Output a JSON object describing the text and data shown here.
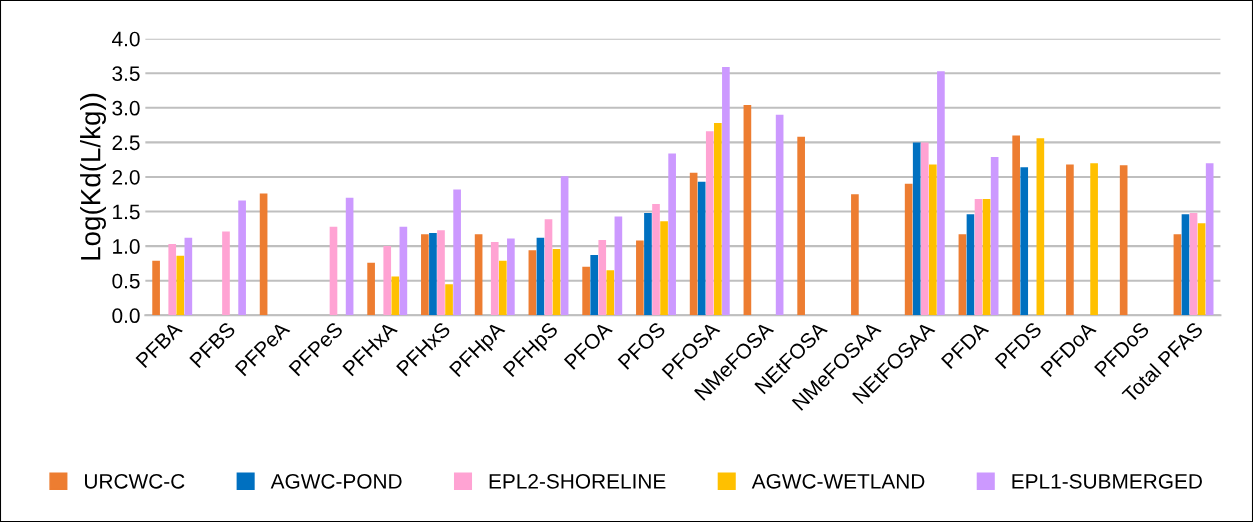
{
  "chart_data": {
    "type": "bar",
    "ylabel": "Log(Kd(L/kg))",
    "categories": [
      "PFBA",
      "PFBS",
      "PFPeA",
      "PFPeS",
      "PFHxA",
      "PFHxS",
      "PFHpA",
      "PFHpS",
      "PFOA",
      "PFOS",
      "PFOSA",
      "NMeFOSA",
      "NEtFOSA",
      "NMeFOSAA",
      "NEtFOSAA",
      "PFDA",
      "PFDS",
      "PFDoA",
      "PFDoS",
      "Total PFAS"
    ],
    "series": [
      {
        "name": "URCWC-C",
        "color": "#ed7d31",
        "values": [
          0.79,
          null,
          1.76,
          null,
          0.76,
          1.17,
          1.17,
          0.94,
          0.7,
          1.08,
          2.06,
          3.04,
          2.58,
          1.75,
          1.9,
          1.17,
          2.6,
          2.18,
          2.17,
          1.17
        ]
      },
      {
        "name": "AGWC-POND",
        "color": "#0070c0",
        "values": [
          null,
          null,
          null,
          null,
          null,
          1.19,
          null,
          1.12,
          0.87,
          1.48,
          1.93,
          null,
          null,
          null,
          2.5,
          1.46,
          2.14,
          null,
          null,
          1.46
        ]
      },
      {
        "name": "EPL2-SHORELINE",
        "color": "#ffa3d3",
        "values": [
          1.03,
          1.21,
          null,
          1.28,
          1.0,
          1.23,
          1.06,
          1.39,
          1.09,
          1.61,
          2.66,
          null,
          null,
          null,
          2.5,
          1.68,
          null,
          null,
          null,
          1.48
        ]
      },
      {
        "name": "AGWC-WETLAND",
        "color": "#ffc000",
        "values": [
          0.86,
          null,
          null,
          null,
          0.56,
          0.45,
          0.79,
          0.96,
          0.65,
          1.36,
          2.78,
          null,
          null,
          null,
          2.18,
          1.68,
          2.56,
          2.2,
          null,
          1.33
        ]
      },
      {
        "name": "EPL1-SUBMERGED",
        "color": "#cc99ff",
        "values": [
          1.12,
          1.66,
          null,
          1.7,
          1.28,
          1.82,
          1.11,
          2.01,
          1.43,
          2.34,
          3.59,
          2.9,
          null,
          null,
          3.53,
          2.29,
          null,
          null,
          null,
          2.2
        ]
      }
    ],
    "ylim": [
      0,
      4
    ],
    "yticks": [
      {
        "value": 0,
        "label": "0.0"
      },
      {
        "value": 0.5,
        "label": "0.5"
      },
      {
        "value": 1,
        "label": "1.0"
      },
      {
        "value": 1.5,
        "label": "1.5"
      },
      {
        "value": 2,
        "label": "2.0"
      },
      {
        "value": 2.5,
        "label": "2.5"
      },
      {
        "value": 3,
        "label": "3.0"
      },
      {
        "value": 3.5,
        "label": "3.5"
      },
      {
        "value": 4,
        "label": "4.0"
      }
    ],
    "grid": "y",
    "legend": "bottom"
  }
}
